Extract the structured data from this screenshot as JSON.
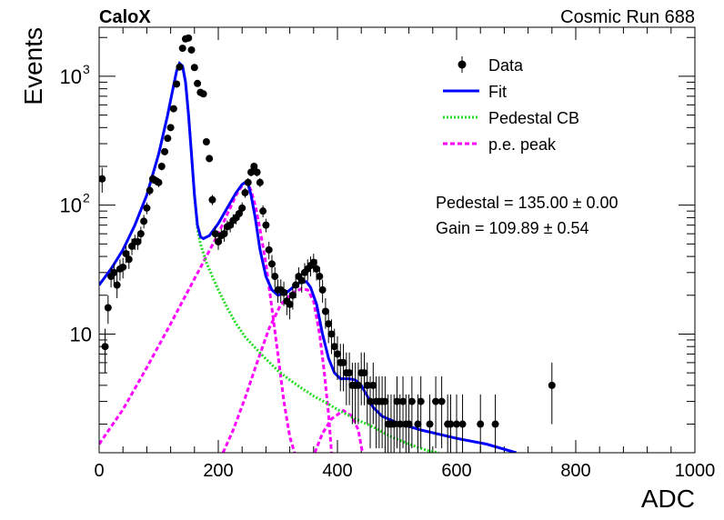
{
  "header": {
    "experiment": "CaloX",
    "run_label": "Cosmic Run 688"
  },
  "fit_results": {
    "pedestal": "Pedestal = 135.00 ± 0.00",
    "gain": "Gain = 109.89 ± 0.54"
  },
  "colors": {
    "data": "#000000",
    "fit": "#0000ff",
    "pedestal_cb": "#22dd22",
    "pe_peak": "#ff00ff"
  },
  "chart_data": {
    "type": "scatter",
    "xlabel": "ADC",
    "ylabel": "Events",
    "xlim": [
      0,
      1000
    ],
    "ylim": [
      1.2,
      2400
    ],
    "yscale": "log",
    "grid": false,
    "legend_position": "top-right",
    "x_ticks": [
      {
        "value": 0,
        "label": "0"
      },
      {
        "value": 200,
        "label": "200"
      },
      {
        "value": 400,
        "label": "400"
      },
      {
        "value": 600,
        "label": "600"
      },
      {
        "value": 800,
        "label": "800"
      },
      {
        "value": 1000,
        "label": "1000"
      }
    ],
    "y_ticks": [
      {
        "value": 10,
        "label": "10"
      },
      {
        "value": 100,
        "label": "10",
        "exp": "2"
      },
      {
        "value": 1000,
        "label": "10",
        "exp": "3"
      }
    ],
    "series": [
      {
        "name": "Data",
        "kind": "points",
        "points": [
          [
            5,
            160,
            35
          ],
          [
            10,
            8,
            3
          ],
          [
            15,
            16,
            4
          ],
          [
            20,
            28,
            5
          ],
          [
            25,
            30,
            5.5
          ],
          [
            30,
            24,
            5
          ],
          [
            35,
            32,
            6
          ],
          [
            40,
            33,
            6
          ],
          [
            45,
            42,
            6.5
          ],
          [
            50,
            38,
            6
          ],
          [
            55,
            48,
            7
          ],
          [
            60,
            52,
            7
          ],
          [
            65,
            52,
            7
          ],
          [
            70,
            60,
            8
          ],
          [
            75,
            75,
            9
          ],
          [
            80,
            95,
            10
          ],
          [
            85,
            130,
            11
          ],
          [
            90,
            160,
            13
          ],
          [
            95,
            155,
            12
          ],
          [
            100,
            150,
            12
          ],
          [
            105,
            200,
            14
          ],
          [
            110,
            260,
            16
          ],
          [
            115,
            330,
            18
          ],
          [
            120,
            400,
            20
          ],
          [
            125,
            560,
            24
          ],
          [
            130,
            870,
            30
          ],
          [
            135,
            1180,
            34
          ],
          [
            140,
            1650,
            40
          ],
          [
            145,
            1950,
            44
          ],
          [
            150,
            1980,
            44
          ],
          [
            155,
            1600,
            40
          ],
          [
            160,
            1170,
            34
          ],
          [
            165,
            880,
            30
          ],
          [
            170,
            750,
            27
          ],
          [
            175,
            730,
            27
          ],
          [
            180,
            310,
            17
          ],
          [
            185,
            230,
            15
          ],
          [
            190,
            110,
            10
          ],
          [
            195,
            60,
            8
          ],
          [
            200,
            52,
            7
          ],
          [
            205,
            58,
            7.5
          ],
          [
            210,
            60,
            8
          ],
          [
            215,
            68,
            8
          ],
          [
            220,
            70,
            8.5
          ],
          [
            225,
            76,
            9
          ],
          [
            230,
            80,
            9
          ],
          [
            235,
            86,
            9
          ],
          [
            240,
            95,
            10
          ],
          [
            245,
            125,
            11
          ],
          [
            250,
            150,
            12
          ],
          [
            255,
            180,
            13
          ],
          [
            260,
            200,
            14
          ],
          [
            265,
            180,
            13
          ],
          [
            270,
            150,
            12
          ],
          [
            275,
            90,
            9.5
          ],
          [
            280,
            70,
            8.5
          ],
          [
            285,
            45,
            7
          ],
          [
            290,
            35,
            6
          ],
          [
            295,
            28,
            5
          ],
          [
            300,
            22,
            4.5
          ],
          [
            305,
            22,
            4.5
          ],
          [
            310,
            21,
            4.5
          ],
          [
            315,
            18,
            4
          ],
          [
            320,
            17,
            4
          ],
          [
            325,
            20,
            4.5
          ],
          [
            330,
            24,
            5
          ],
          [
            335,
            28,
            5
          ],
          [
            340,
            26,
            5
          ],
          [
            345,
            30,
            5.5
          ],
          [
            350,
            32,
            6
          ],
          [
            355,
            34,
            6
          ],
          [
            360,
            36,
            6
          ],
          [
            365,
            32,
            6
          ],
          [
            370,
            28,
            5
          ],
          [
            375,
            22,
            4.5
          ],
          [
            380,
            15,
            4
          ],
          [
            385,
            12,
            3.5
          ],
          [
            390,
            10,
            3
          ],
          [
            395,
            8,
            3
          ],
          [
            400,
            7,
            2.6
          ],
          [
            405,
            6,
            2.4
          ],
          [
            410,
            6,
            2.4
          ],
          [
            415,
            5,
            2.2
          ],
          [
            420,
            5,
            2.2
          ],
          [
            425,
            4,
            2
          ],
          [
            430,
            4,
            2
          ],
          [
            435,
            4,
            2
          ],
          [
            440,
            5,
            2.2
          ],
          [
            445,
            5,
            2.2
          ],
          [
            450,
            4,
            2
          ],
          [
            455,
            3,
            1.7
          ],
          [
            460,
            4,
            2
          ],
          [
            465,
            3,
            1.7
          ],
          [
            470,
            3,
            1.7
          ],
          [
            475,
            3,
            1.7
          ],
          [
            480,
            3,
            1.7
          ],
          [
            485,
            2,
            1.4
          ],
          [
            490,
            2,
            1.4
          ],
          [
            495,
            2,
            1.4
          ],
          [
            500,
            3,
            1.7
          ],
          [
            505,
            2,
            1.4
          ],
          [
            510,
            3,
            1.7
          ],
          [
            515,
            2,
            1.4
          ],
          [
            520,
            2,
            1.4
          ],
          [
            525,
            3,
            1.7
          ],
          [
            535,
            2,
            1.4
          ],
          [
            540,
            3,
            1.7
          ],
          [
            555,
            2,
            1.4
          ],
          [
            565,
            3,
            1.7
          ],
          [
            575,
            3,
            1.7
          ],
          [
            585,
            2,
            1.4
          ],
          [
            590,
            2,
            1.4
          ],
          [
            600,
            2,
            1.4
          ],
          [
            610,
            2,
            1.4
          ],
          [
            640,
            2,
            1.4
          ],
          [
            665,
            2,
            1.4
          ],
          [
            760,
            4,
            2
          ]
        ]
      },
      {
        "name": "Fit",
        "kind": "line",
        "points": [
          [
            0,
            24
          ],
          [
            20,
            32
          ],
          [
            40,
            45
          ],
          [
            60,
            70
          ],
          [
            80,
            120
          ],
          [
            100,
            250
          ],
          [
            115,
            500
          ],
          [
            125,
            850
          ],
          [
            130,
            1100
          ],
          [
            135,
            1260
          ],
          [
            140,
            1200
          ],
          [
            145,
            900
          ],
          [
            150,
            500
          ],
          [
            155,
            250
          ],
          [
            160,
            120
          ],
          [
            165,
            70
          ],
          [
            170,
            57
          ],
          [
            175,
            55
          ],
          [
            185,
            58
          ],
          [
            200,
            72
          ],
          [
            215,
            95
          ],
          [
            230,
            125
          ],
          [
            240,
            145
          ],
          [
            245,
            150
          ],
          [
            250,
            145
          ],
          [
            255,
            120
          ],
          [
            262,
            80
          ],
          [
            270,
            45
          ],
          [
            280,
            28
          ],
          [
            290,
            22
          ],
          [
            300,
            20
          ],
          [
            315,
            21
          ],
          [
            330,
            24
          ],
          [
            340,
            25.5
          ],
          [
            348,
            25.5
          ],
          [
            355,
            23
          ],
          [
            365,
            17
          ],
          [
            375,
            10
          ],
          [
            385,
            6.5
          ],
          [
            395,
            5
          ],
          [
            405,
            4.5
          ],
          [
            420,
            4.5
          ],
          [
            430,
            4.4
          ],
          [
            440,
            4
          ],
          [
            450,
            3.3
          ],
          [
            460,
            2.7
          ],
          [
            475,
            2.3
          ],
          [
            500,
            2.05
          ],
          [
            540,
            1.8
          ],
          [
            600,
            1.55
          ],
          [
            650,
            1.4
          ],
          [
            700,
            1.2
          ]
        ]
      },
      {
        "name": "Pedestal CB",
        "kind": "line",
        "points": [
          [
            0,
            24
          ],
          [
            20,
            32
          ],
          [
            40,
            45
          ],
          [
            60,
            70
          ],
          [
            80,
            120
          ],
          [
            100,
            250
          ],
          [
            115,
            500
          ],
          [
            125,
            850
          ],
          [
            130,
            1100
          ],
          [
            135,
            1260
          ],
          [
            140,
            1200
          ],
          [
            145,
            900
          ],
          [
            150,
            500
          ],
          [
            155,
            250
          ],
          [
            160,
            120
          ],
          [
            165,
            65
          ],
          [
            170,
            50
          ],
          [
            180,
            36
          ],
          [
            190,
            28
          ],
          [
            200,
            22
          ],
          [
            215,
            16
          ],
          [
            230,
            12
          ],
          [
            245,
            9.5
          ],
          [
            260,
            8
          ],
          [
            280,
            6.4
          ],
          [
            300,
            5.2
          ],
          [
            320,
            4.4
          ],
          [
            340,
            3.8
          ],
          [
            360,
            3.3
          ],
          [
            380,
            2.95
          ],
          [
            400,
            2.6
          ],
          [
            430,
            2.2
          ],
          [
            460,
            1.9
          ],
          [
            490,
            1.6
          ],
          [
            520,
            1.4
          ],
          [
            550,
            1.25
          ],
          [
            570,
            1.2
          ]
        ]
      },
      {
        "name": "p.e. peak",
        "kind": "line",
        "segments": [
          [
            [
              0,
              1.4
            ],
            [
              40,
              2.6
            ],
            [
              80,
              5.5
            ],
            [
              120,
              12
            ],
            [
              150,
              22
            ],
            [
              180,
              40
            ],
            [
              200,
              60
            ],
            [
              215,
              85
            ],
            [
              230,
              120
            ],
            [
              240,
              142
            ],
            [
              245,
              148
            ],
            [
              250,
              145
            ],
            [
              255,
              130
            ],
            [
              262,
              100
            ],
            [
              270,
              65
            ],
            [
              280,
              35
            ],
            [
              290,
              16
            ],
            [
              300,
              7
            ],
            [
              310,
              3
            ],
            [
              320,
              1.6
            ],
            [
              328,
              1.2
            ]
          ],
          [
            [
              208,
              1.2
            ],
            [
              225,
              1.8
            ],
            [
              245,
              3.2
            ],
            [
              265,
              6
            ],
            [
              285,
              11
            ],
            [
              305,
              17
            ],
            [
              325,
              21
            ],
            [
              340,
              22.5
            ],
            [
              350,
              22
            ],
            [
              360,
              18
            ],
            [
              370,
              10
            ],
            [
              378,
              5
            ],
            [
              385,
              2.4
            ],
            [
              390,
              1.2
            ]
          ],
          [
            [
              362,
              1.2
            ],
            [
              375,
              1.7
            ],
            [
              390,
              2.2
            ],
            [
              410,
              2.55
            ],
            [
              425,
              2.3
            ],
            [
              435,
              1.8
            ],
            [
              442,
              1.2
            ]
          ]
        ]
      }
    ]
  }
}
